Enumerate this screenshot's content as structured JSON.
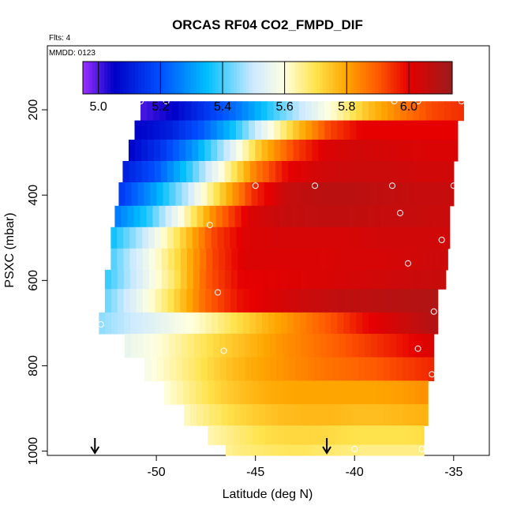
{
  "chart_data": {
    "type": "heatmap",
    "title": "ORCAS RF04 CO2_FMPD_DIF",
    "subtitle": "Flts: 4",
    "annotation": "MMDD: 0123",
    "xlabel": "Latitude (deg N)",
    "ylabel": "PSXC (mbar)",
    "xlim": [
      -55.5,
      -33.2
    ],
    "ylim": [
      1010,
      50
    ],
    "y_reversed": true,
    "grid": false,
    "xticks": [
      -50,
      -45,
      -40,
      -35
    ],
    "yticks": [
      200,
      400,
      600,
      800,
      1000
    ],
    "colorbar": {
      "range": [
        4.95,
        6.14
      ],
      "ticks": [
        5.0,
        5.2,
        5.4,
        5.6,
        5.8,
        6.0
      ],
      "tick_labels": [
        "5.0",
        "5.2",
        "5.4",
        "5.6",
        "5.8",
        "6.0"
      ],
      "stops": [
        {
          "v": 4.95,
          "c": "#9b30ff"
        },
        {
          "v": 5.05,
          "c": "#0000c8"
        },
        {
          "v": 5.2,
          "c": "#0050ff"
        },
        {
          "v": 5.35,
          "c": "#00bfff"
        },
        {
          "v": 5.5,
          "c": "#cfeaff"
        },
        {
          "v": 5.6,
          "c": "#ffffe0"
        },
        {
          "v": 5.7,
          "c": "#ffe34d"
        },
        {
          "v": 5.8,
          "c": "#ffa500"
        },
        {
          "v": 5.9,
          "c": "#ff5a00"
        },
        {
          "v": 6.0,
          "c": "#e60000"
        },
        {
          "v": 6.14,
          "c": "#9b1c1c"
        }
      ]
    },
    "rows": [
      {
        "p0": 180,
        "p1": 225,
        "xmin": -50.8,
        "xmax": -34.5,
        "v": [
          5.0,
          5.05,
          5.15,
          5.25,
          5.38,
          5.5,
          5.62,
          5.75,
          5.85,
          5.92,
          5.95
        ]
      },
      {
        "p0": 225,
        "p1": 270,
        "xmin": -51.1,
        "xmax": -34.8,
        "v": [
          5.05,
          5.1,
          5.2,
          5.35,
          5.55,
          5.75,
          5.92,
          6.0,
          6.0,
          6.0,
          6.0
        ]
      },
      {
        "p0": 270,
        "p1": 320,
        "xmin": -51.4,
        "xmax": -34.8,
        "v": [
          5.05,
          5.15,
          5.3,
          5.5,
          5.75,
          5.92,
          6.02,
          6.04,
          6.03,
          6.02,
          6.02
        ]
      },
      {
        "p0": 320,
        "p1": 370,
        "xmin": -51.7,
        "xmax": -35.0,
        "v": [
          5.1,
          5.2,
          5.38,
          5.6,
          5.85,
          6.0,
          6.04,
          6.05,
          6.05,
          6.04,
          6.04
        ]
      },
      {
        "p0": 370,
        "p1": 425,
        "xmin": -51.9,
        "xmax": -35.0,
        "v": [
          5.15,
          5.3,
          5.48,
          5.72,
          5.95,
          6.06,
          6.08,
          6.08,
          6.07,
          6.06,
          6.06
        ]
      },
      {
        "p0": 425,
        "p1": 475,
        "xmin": -52.1,
        "xmax": -35.2,
        "v": [
          5.25,
          5.38,
          5.6,
          5.85,
          6.02,
          6.06,
          6.07,
          6.07,
          6.06,
          6.06,
          6.05
        ]
      },
      {
        "p0": 475,
        "p1": 525,
        "xmin": -52.3,
        "xmax": -35.2,
        "v": [
          5.35,
          5.5,
          5.7,
          5.92,
          6.02,
          6.03,
          6.03,
          6.03,
          6.04,
          6.04,
          6.04
        ]
      },
      {
        "p0": 525,
        "p1": 575,
        "xmin": -52.3,
        "xmax": -35.3,
        "v": [
          5.4,
          5.55,
          5.72,
          5.92,
          6.02,
          6.02,
          6.02,
          6.03,
          6.03,
          6.04,
          6.05
        ]
      },
      {
        "p0": 575,
        "p1": 620,
        "xmin": -52.6,
        "xmax": -35.4,
        "v": [
          5.38,
          5.52,
          5.68,
          5.9,
          6.0,
          6.01,
          6.02,
          6.03,
          6.04,
          6.05,
          6.06
        ]
      },
      {
        "p0": 620,
        "p1": 675,
        "xmin": -52.6,
        "xmax": -35.8,
        "v": [
          5.42,
          5.55,
          5.7,
          5.88,
          5.98,
          6.02,
          6.05,
          6.07,
          6.08,
          6.09,
          6.1
        ]
      },
      {
        "p0": 675,
        "p1": 725,
        "xmin": -52.9,
        "xmax": -35.8,
        "v": [
          5.45,
          5.5,
          5.56,
          5.62,
          5.7,
          5.78,
          5.85,
          5.92,
          6.0,
          6.05,
          6.1
        ]
      },
      {
        "p0": 725,
        "p1": 780,
        "xmin": -51.6,
        "xmax": -36.0,
        "v": [
          5.55,
          5.6,
          5.66,
          5.72,
          5.77,
          5.82,
          5.86,
          5.9,
          5.94,
          5.98,
          6.03
        ]
      },
      {
        "p0": 780,
        "p1": 835,
        "xmin": -50.6,
        "xmax": -36.0,
        "v": [
          5.58,
          5.64,
          5.7,
          5.76,
          5.8,
          5.83,
          5.86,
          5.88,
          5.9,
          5.93,
          5.96
        ]
      },
      {
        "p0": 835,
        "p1": 890,
        "xmin": -49.6,
        "xmax": -36.3,
        "v": [
          5.6,
          5.66,
          5.72,
          5.76,
          5.79,
          5.8,
          5.8,
          5.8,
          5.8,
          5.81,
          5.83
        ]
      },
      {
        "p0": 890,
        "p1": 940,
        "xmin": -48.6,
        "xmax": -36.3,
        "v": [
          5.62,
          5.67,
          5.71,
          5.74,
          5.76,
          5.77,
          5.77,
          5.76,
          5.76,
          5.77,
          5.78
        ]
      },
      {
        "p0": 940,
        "p1": 985,
        "xmin": -47.4,
        "xmax": -36.5,
        "v": [
          5.63,
          5.66,
          5.69,
          5.71,
          5.72,
          5.72,
          5.71,
          5.7,
          5.7,
          5.7,
          5.71
        ]
      },
      {
        "p0": 985,
        "p1": 1010,
        "xmin": -46.5,
        "xmax": -36.5,
        "v": [
          5.65,
          5.67,
          5.68,
          5.69,
          5.69,
          5.68,
          5.67,
          5.66,
          5.66,
          5.66,
          5.66
        ]
      }
    ],
    "points": [
      {
        "x": -50.8,
        "y": 180
      },
      {
        "x": -49.5,
        "y": 180
      },
      {
        "x": -38.0,
        "y": 180
      },
      {
        "x": -36.8,
        "y": 180
      },
      {
        "x": -34.6,
        "y": 180
      },
      {
        "x": -45.0,
        "y": 378
      },
      {
        "x": -42.0,
        "y": 378
      },
      {
        "x": -38.1,
        "y": 378
      },
      {
        "x": -35.0,
        "y": 378
      },
      {
        "x": -37.7,
        "y": 442
      },
      {
        "x": -52.3,
        "y": 467
      },
      {
        "x": -47.3,
        "y": 470
      },
      {
        "x": -35.6,
        "y": 505
      },
      {
        "x": -37.3,
        "y": 560
      },
      {
        "x": -46.9,
        "y": 628
      },
      {
        "x": -36.0,
        "y": 673
      },
      {
        "x": -52.8,
        "y": 703
      },
      {
        "x": -46.6,
        "y": 765
      },
      {
        "x": -36.8,
        "y": 760
      },
      {
        "x": -36.1,
        "y": 820
      },
      {
        "x": -40.0,
        "y": 995
      },
      {
        "x": -36.6,
        "y": 995
      }
    ],
    "markers": [
      {
        "x": -53.1
      },
      {
        "x": -41.4
      }
    ]
  }
}
